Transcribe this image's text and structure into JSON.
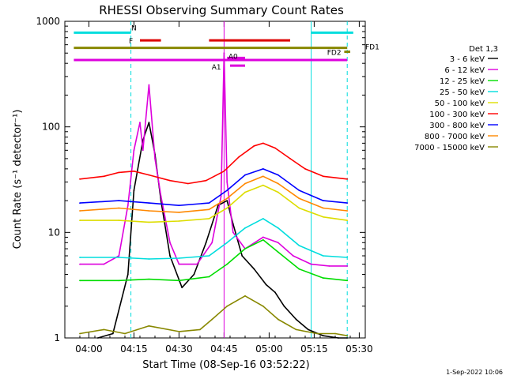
{
  "chart_data": {
    "type": "line",
    "title": "RHESSI Observing Summary Count Rates",
    "ylabel": "Count Rate (s⁻¹ detector⁻¹)",
    "xlabel": "Start Time (08-Sep-16 03:52:22)",
    "footer": "1-Sep-2022 10:06",
    "x_range": [
      "03:52",
      "05:32"
    ],
    "x_ticks": [
      "04:00",
      "04:15",
      "04:30",
      "04:45",
      "05:00",
      "05:15",
      "05:30"
    ],
    "y_scale": "log",
    "y_range": [
      1,
      1000
    ],
    "y_ticks": [
      "1",
      "10",
      "100",
      "1000"
    ],
    "legend": {
      "title": "Det 1,3",
      "placement": "right",
      "entries": [
        {
          "label": "3 - 6 keV",
          "color": "#000000"
        },
        {
          "label": "6 - 12 keV",
          "color": "#dd00dd"
        },
        {
          "label": "12 - 25 keV",
          "color": "#00dd00"
        },
        {
          "label": "25 - 50 keV",
          "color": "#00dddd"
        },
        {
          "label": "50 - 100 keV",
          "color": "#dddd00"
        },
        {
          "label": "100 - 300 keV",
          "color": "#ff0000"
        },
        {
          "label": "300 - 800 keV",
          "color": "#0000ff"
        },
        {
          "label": "800 - 7000 keV",
          "color": "#ff8800"
        },
        {
          "label": "7000 - 15000 keV",
          "color": "#888800"
        }
      ]
    },
    "series": [
      {
        "name": "3 - 6 keV",
        "color": "#000000",
        "points": [
          [
            "04:03",
            1.0
          ],
          [
            "04:08",
            1.1
          ],
          [
            "04:13",
            4.0
          ],
          [
            "04:15",
            25.0
          ],
          [
            "04:18",
            75.0
          ],
          [
            "04:20",
            110.0
          ],
          [
            "04:22",
            55.0
          ],
          [
            "04:24",
            20.0
          ],
          [
            "04:27",
            6.0
          ],
          [
            "04:31",
            3.0
          ],
          [
            "04:35",
            4.0
          ],
          [
            "04:39",
            8.0
          ],
          [
            "04:43",
            18.0
          ],
          [
            "04:46",
            20.0
          ],
          [
            "04:48",
            12.0
          ],
          [
            "04:51",
            6.0
          ],
          [
            "04:55",
            4.5
          ],
          [
            "04:59",
            3.2
          ],
          [
            "05:02",
            2.7
          ],
          [
            "05:05",
            2.0
          ],
          [
            "05:09",
            1.5
          ],
          [
            "05:13",
            1.2
          ],
          [
            "05:18",
            1.05
          ],
          [
            "05:23",
            1.0
          ],
          [
            "05:26",
            1.0
          ]
        ]
      },
      {
        "name": "6 - 12 keV",
        "color": "#dd00dd",
        "points": [
          [
            "03:57",
            5.0
          ],
          [
            "04:05",
            5.0
          ],
          [
            "04:10",
            6.0
          ],
          [
            "04:13",
            18.0
          ],
          [
            "04:15",
            60.0
          ],
          [
            "04:17",
            110.0
          ],
          [
            "04:18",
            60.0
          ],
          [
            "04:20",
            250.0
          ],
          [
            "04:22",
            50.0
          ],
          [
            "04:24",
            22.0
          ],
          [
            "04:27",
            8.0
          ],
          [
            "04:30",
            5.0
          ],
          [
            "04:36",
            5.0
          ],
          [
            "04:41",
            8.0
          ],
          [
            "04:44",
            22.0
          ],
          [
            "04:45",
            500.0
          ],
          [
            "04:46",
            30.0
          ],
          [
            "04:48",
            10.0
          ],
          [
            "04:52",
            7.0
          ],
          [
            "04:58",
            9.0
          ],
          [
            "05:03",
            8.0
          ],
          [
            "05:08",
            6.0
          ],
          [
            "05:14",
            5.0
          ],
          [
            "05:20",
            4.8
          ],
          [
            "05:26",
            4.8
          ]
        ]
      },
      {
        "name": "12 - 25 keV",
        "color": "#00dd00",
        "points": [
          [
            "03:57",
            3.5
          ],
          [
            "04:10",
            3.5
          ],
          [
            "04:20",
            3.6
          ],
          [
            "04:30",
            3.5
          ],
          [
            "04:40",
            3.8
          ],
          [
            "04:46",
            5.0
          ],
          [
            "04:52",
            7.0
          ],
          [
            "04:58",
            8.5
          ],
          [
            "05:03",
            6.5
          ],
          [
            "05:10",
            4.5
          ],
          [
            "05:18",
            3.7
          ],
          [
            "05:26",
            3.5
          ]
        ]
      },
      {
        "name": "25 - 50 keV",
        "color": "#00dddd",
        "points": [
          [
            "03:57",
            5.8
          ],
          [
            "04:10",
            5.8
          ],
          [
            "04:20",
            5.6
          ],
          [
            "04:30",
            5.7
          ],
          [
            "04:40",
            6.0
          ],
          [
            "04:46",
            8.0
          ],
          [
            "04:52",
            11.0
          ],
          [
            "04:58",
            13.5
          ],
          [
            "05:03",
            11.0
          ],
          [
            "05:10",
            7.5
          ],
          [
            "05:18",
            6.0
          ],
          [
            "05:26",
            5.8
          ]
        ]
      },
      {
        "name": "50 - 100 keV",
        "color": "#dddd00",
        "points": [
          [
            "03:57",
            13.0
          ],
          [
            "04:10",
            13.0
          ],
          [
            "04:20",
            12.5
          ],
          [
            "04:30",
            12.8
          ],
          [
            "04:40",
            13.5
          ],
          [
            "04:46",
            17.0
          ],
          [
            "04:52",
            24.0
          ],
          [
            "04:58",
            28.0
          ],
          [
            "05:03",
            24.0
          ],
          [
            "05:10",
            17.0
          ],
          [
            "05:18",
            14.0
          ],
          [
            "05:26",
            13.0
          ]
        ]
      },
      {
        "name": "100 - 300 keV",
        "color": "#ff0000",
        "points": [
          [
            "03:57",
            32.0
          ],
          [
            "04:05",
            34.0
          ],
          [
            "04:10",
            37.0
          ],
          [
            "04:15",
            38.0
          ],
          [
            "04:20",
            35.0
          ],
          [
            "04:27",
            31.0
          ],
          [
            "04:33",
            29.0
          ],
          [
            "04:39",
            31.0
          ],
          [
            "04:45",
            38.0
          ],
          [
            "04:50",
            52.0
          ],
          [
            "04:55",
            66.0
          ],
          [
            "04:58",
            70.0
          ],
          [
            "05:02",
            63.0
          ],
          [
            "05:07",
            50.0
          ],
          [
            "05:12",
            40.0
          ],
          [
            "05:18",
            34.0
          ],
          [
            "05:26",
            32.0
          ]
        ]
      },
      {
        "name": "300 - 800 keV",
        "color": "#0000ff",
        "points": [
          [
            "03:57",
            19.0
          ],
          [
            "04:10",
            20.0
          ],
          [
            "04:20",
            19.0
          ],
          [
            "04:30",
            18.0
          ],
          [
            "04:40",
            19.0
          ],
          [
            "04:46",
            25.0
          ],
          [
            "04:52",
            35.0
          ],
          [
            "04:58",
            40.0
          ],
          [
            "05:03",
            35.0
          ],
          [
            "05:10",
            25.0
          ],
          [
            "05:18",
            20.0
          ],
          [
            "05:26",
            19.0
          ]
        ]
      },
      {
        "name": "800 - 7000 keV",
        "color": "#ff8800",
        "points": [
          [
            "03:57",
            16.0
          ],
          [
            "04:10",
            17.0
          ],
          [
            "04:20",
            16.0
          ],
          [
            "04:30",
            15.5
          ],
          [
            "04:40",
            16.5
          ],
          [
            "04:46",
            21.0
          ],
          [
            "04:52",
            29.0
          ],
          [
            "04:58",
            34.0
          ],
          [
            "05:03",
            29.0
          ],
          [
            "05:10",
            21.0
          ],
          [
            "05:18",
            17.0
          ],
          [
            "05:26",
            16.0
          ]
        ]
      },
      {
        "name": "7000 - 15000 keV",
        "color": "#888800",
        "points": [
          [
            "03:57",
            1.1
          ],
          [
            "04:05",
            1.2
          ],
          [
            "04:12",
            1.1
          ],
          [
            "04:20",
            1.3
          ],
          [
            "04:30",
            1.15
          ],
          [
            "04:37",
            1.2
          ],
          [
            "04:41",
            1.5
          ],
          [
            "04:46",
            2.0
          ],
          [
            "04:52",
            2.5
          ],
          [
            "04:58",
            2.0
          ],
          [
            "05:03",
            1.5
          ],
          [
            "05:09",
            1.2
          ],
          [
            "05:16",
            1.1
          ],
          [
            "05:22",
            1.1
          ],
          [
            "05:26",
            1.05
          ]
        ]
      }
    ],
    "flag_bars": [
      {
        "label": "N",
        "color": "#00dddd",
        "y": 780,
        "segments": [
          [
            "03:55",
            "04:14"
          ],
          [
            "05:14",
            "05:28"
          ]
        ]
      },
      {
        "label": "F",
        "color": "#dd0000",
        "y": 660,
        "segments": [
          [
            "04:17",
            "04:24"
          ],
          [
            "04:40",
            "05:07"
          ]
        ]
      },
      {
        "label": "FD1",
        "color": "#888800",
        "y": 560,
        "segments": [
          [
            "03:55",
            "05:26"
          ]
        ]
      },
      {
        "label": "FD2",
        "color": "#888800",
        "y": 515,
        "segments": [
          [
            "05:25",
            "05:27"
          ]
        ]
      },
      {
        "label": "A0",
        "color": "#dd00dd",
        "y": 450,
        "segments": [
          [
            "04:46",
            "04:52"
          ]
        ]
      },
      {
        "label": "A1",
        "color": "#dd00dd",
        "y": 380,
        "segments": [
          [
            "04:47",
            "04:52"
          ]
        ]
      },
      {
        "label": "",
        "color": "#dd00dd",
        "y": 430,
        "segments": [
          [
            "03:55",
            "05:26"
          ]
        ]
      }
    ],
    "vertical_markers": [
      {
        "time": "04:14",
        "color": "#00dddd",
        "style": "dashed"
      },
      {
        "time": "05:14",
        "color": "#00dddd",
        "style": "solid"
      },
      {
        "time": "05:26",
        "color": "#00dddd",
        "style": "dashed"
      },
      {
        "time": "04:45",
        "color": "#dd00dd",
        "style": "solid"
      }
    ]
  }
}
